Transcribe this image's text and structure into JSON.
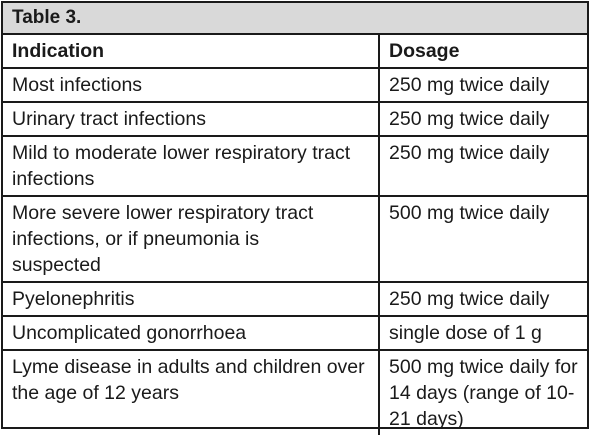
{
  "table": {
    "title": "Table 3.",
    "headers": {
      "indication": "Indication",
      "dosage": "Dosage"
    },
    "rows": [
      {
        "indication": "Most infections",
        "dosage": "250 mg twice daily"
      },
      {
        "indication": "Urinary tract infections",
        "dosage": "250 mg twice daily"
      },
      {
        "indication": "Mild to moderate lower respiratory tract infections",
        "dosage": "250 mg twice daily"
      },
      {
        "indication": "More severe lower respiratory tract infections, or if pneumonia is suspected",
        "dosage": "500 mg twice daily"
      },
      {
        "indication": "Pyelonephritis",
        "dosage": "250 mg twice daily"
      },
      {
        "indication": "Uncomplicated gonorrhoea",
        "dosage": "single dose of 1 g"
      },
      {
        "indication": "Lyme disease in adults and children over the age of 12 years",
        "dosage": "500 mg twice daily for 14 days (range of 10-21 days)"
      }
    ]
  }
}
